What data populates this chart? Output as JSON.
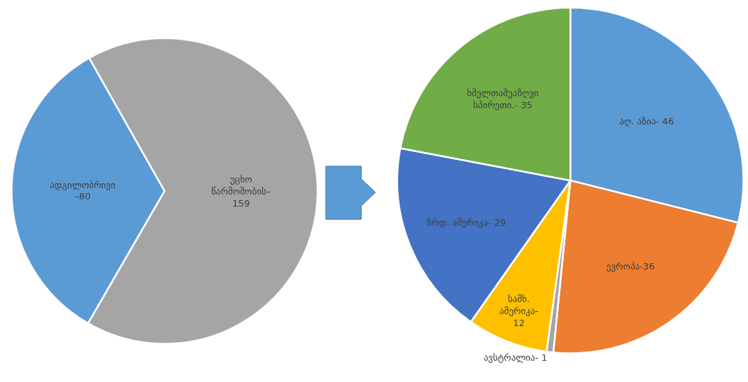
{
  "chart_data": [
    {
      "type": "pie",
      "categories": [
        "ადგილობრივი\n–80",
        "უცხო\nწარმოშობის–\n159"
      ],
      "values": [
        80,
        159
      ],
      "colors": [
        "#5b9bd5",
        "#a5a5a5"
      ]
    },
    {
      "type": "pie",
      "categories": [
        "აღ. აზია- 46",
        "ევროპა-36",
        "ავსტრალია- 1",
        "სამხ.\nამერიკა-\n12",
        "ჩრდ. ამერიკა- 29",
        "ხმელთაშუაზღვი\nსპირეთი.- 35"
      ],
      "values": [
        46,
        36,
        1,
        12,
        29,
        35
      ],
      "colors": [
        "#5b9bd5",
        "#ed7d31",
        "#a5a5a5",
        "#ffc000",
        "#4472c4",
        "#70ad47"
      ]
    }
  ]
}
